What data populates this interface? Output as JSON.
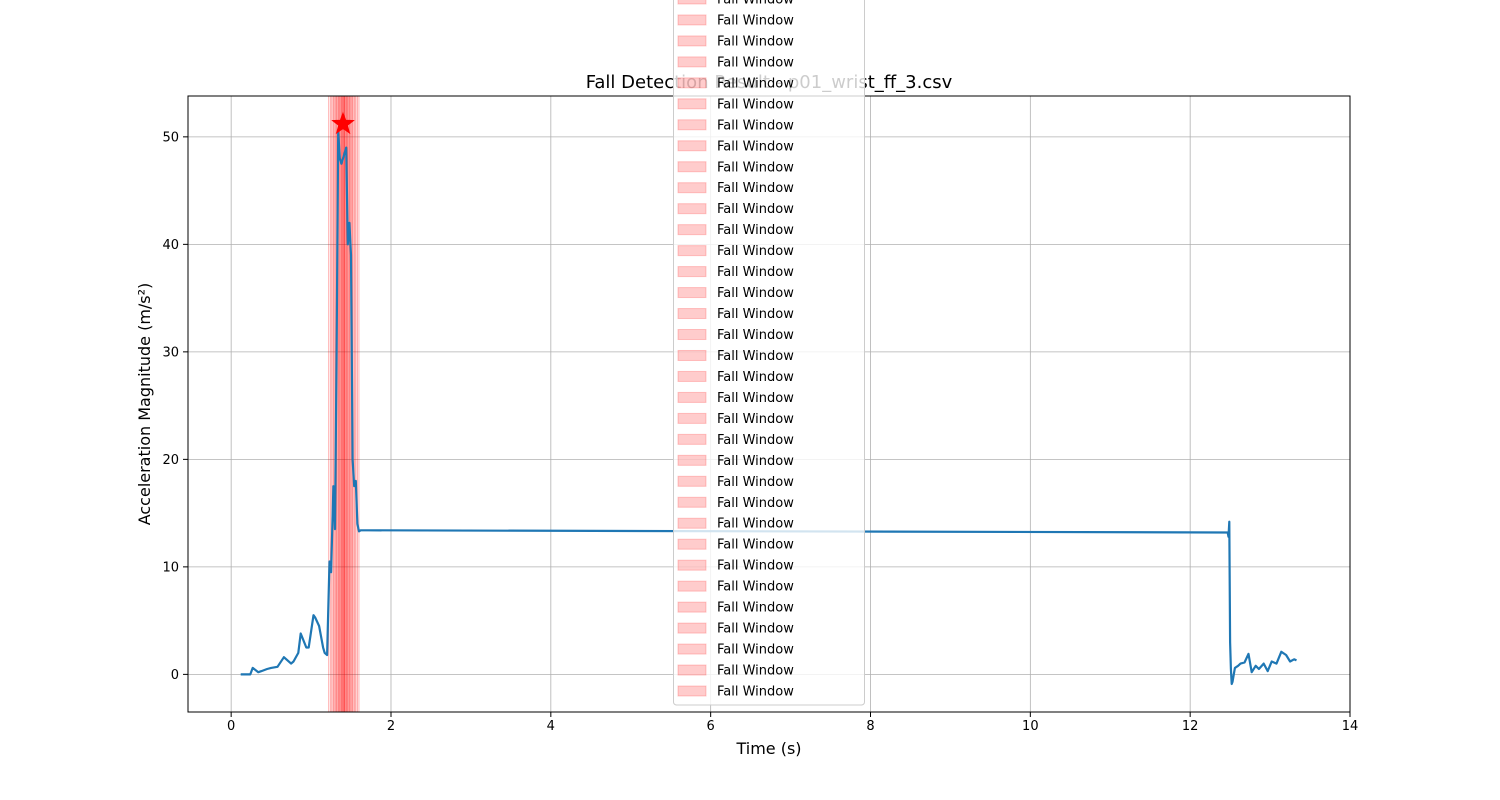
{
  "chart_data": {
    "type": "line",
    "title": "Fall Detection Result - p01_wrist_ff_3.csv",
    "xlabel": "Time (s)",
    "ylabel": "Acceleration Magnitude (m/s²)",
    "xlim": [
      -0.54,
      14.0
    ],
    "ylim": [
      -3.5,
      53.8
    ],
    "xticks": [
      0,
      2,
      4,
      6,
      8,
      10,
      12,
      14
    ],
    "xtick_labels": [
      "0",
      "2",
      "4",
      "6",
      "8",
      "10",
      "12",
      "14"
    ],
    "yticks": [
      0,
      10,
      20,
      30,
      40,
      50
    ],
    "ytick_labels": [
      "0",
      "10",
      "20",
      "30",
      "40",
      "50"
    ],
    "grid": true,
    "legend_placement": "upper center",
    "line_color": "#1f77b4",
    "window_color": "#ff0000",
    "series": [
      {
        "x": [
          0.12,
          0.24,
          0.27,
          0.34,
          0.38,
          0.45,
          0.5,
          0.58,
          0.66,
          0.75,
          0.78,
          0.84,
          0.87,
          0.94,
          0.97,
          1.03,
          1.05,
          1.1,
          1.15,
          1.17,
          1.2,
          1.23,
          1.25,
          1.28,
          1.3,
          1.32,
          1.34,
          1.36,
          1.38,
          1.4,
          1.42,
          1.44,
          1.46,
          1.48,
          1.5,
          1.52,
          1.54,
          1.56,
          1.58,
          1.6,
          1.62,
          1.64,
          1.66,
          1.68,
          1.7,
          12.47,
          12.48,
          12.49,
          12.5,
          12.51,
          12.52,
          12.53,
          12.56,
          12.6,
          12.63,
          12.68,
          12.73,
          12.77,
          12.82,
          12.86,
          12.92,
          12.97,
          13.02,
          13.08,
          13.14,
          13.2,
          13.25,
          13.3,
          13.33
        ],
        "y": [
          0.0,
          0.0,
          0.6,
          0.2,
          0.3,
          0.5,
          0.6,
          0.7,
          1.6,
          1.0,
          1.2,
          2.0,
          3.8,
          2.5,
          2.5,
          5.5,
          5.3,
          4.5,
          2.5,
          2.0,
          1.8,
          10.5,
          9.5,
          17.5,
          13.5,
          30.0,
          50.5,
          48.0,
          47.5,
          48.0,
          48.5,
          49.0,
          40.0,
          42.0,
          39.0,
          20.0,
          17.5,
          18.0,
          14.0,
          13.3,
          13.4,
          13.4,
          13.4,
          13.4,
          13.4,
          13.2,
          12.8,
          14.2,
          3.0,
          0.5,
          -0.9,
          -0.7,
          0.6,
          0.8,
          1.0,
          1.1,
          1.9,
          0.2,
          0.8,
          0.5,
          1.0,
          0.3,
          1.2,
          1.0,
          2.1,
          1.8,
          1.2,
          1.4,
          1.3
        ]
      }
    ],
    "fall_windows": [
      [
        1.22,
        1.4
      ],
      [
        1.24,
        1.42
      ],
      [
        1.26,
        1.44
      ],
      [
        1.28,
        1.46
      ],
      [
        1.3,
        1.48
      ],
      [
        1.32,
        1.5
      ],
      [
        1.34,
        1.52
      ],
      [
        1.36,
        1.54
      ],
      [
        1.38,
        1.56
      ],
      [
        1.4,
        1.58
      ],
      [
        1.42,
        1.6
      ]
    ],
    "detected_peak": {
      "x": 1.4,
      "y": 51.2
    },
    "legend_label": "Fall Window",
    "legend_entries": 34
  }
}
